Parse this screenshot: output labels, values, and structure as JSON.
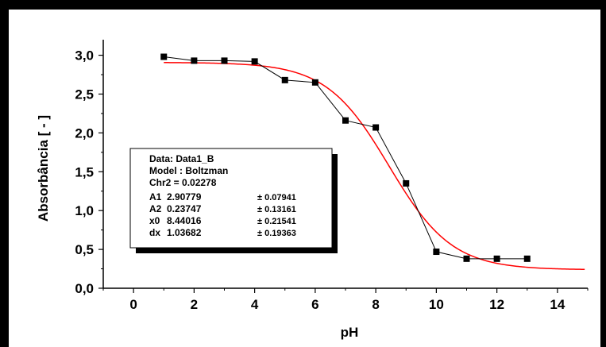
{
  "chart_data": {
    "type": "scatter",
    "xlabel": "pH",
    "ylabel": "Absorbância [ - ]",
    "xlim": [
      -1,
      15
    ],
    "ylim": [
      0,
      3.2
    ],
    "x_ticks": [
      0,
      2,
      4,
      6,
      8,
      10,
      12,
      14
    ],
    "x_tick_labels": [
      "0",
      "2",
      "4",
      "6",
      "8",
      "10",
      "12",
      "14"
    ],
    "y_ticks": [
      0,
      0.5,
      1.0,
      1.5,
      2.0,
      2.5,
      3.0
    ],
    "y_tick_labels": [
      "0,0",
      "0,5",
      "1,0",
      "1,5",
      "2,0",
      "2,5",
      "3,0"
    ],
    "grid": false,
    "series": [
      {
        "kind": "data",
        "marker": "square",
        "line_color": "#000000",
        "x": [
          1,
          2,
          3,
          4,
          5,
          6,
          7,
          8,
          9,
          10,
          11,
          12,
          13
        ],
        "y": [
          2.98,
          2.93,
          2.93,
          2.92,
          2.68,
          2.65,
          2.16,
          2.07,
          1.35,
          0.47,
          0.38,
          0.38,
          0.38
        ]
      },
      {
        "kind": "fit",
        "model": "Boltzman",
        "color": "#ff0000",
        "params": {
          "A1": 2.90779,
          "A2": 0.23747,
          "x0": 8.44016,
          "dx": 1.03682
        }
      }
    ],
    "fit_box": {
      "lines": [
        "Data: Data1_B",
        "Model : Boltzman",
        "Chr2 = 0.02278"
      ],
      "params": [
        {
          "name": "A1",
          "value": "2.90779",
          "error": "± 0.07941"
        },
        {
          "name": "A2",
          "value": "0.23747",
          "error": "± 0.13161"
        },
        {
          "name": "x0",
          "value": "8.44016",
          "error": "± 0.21541"
        },
        {
          "name": "dx",
          "value": "1.03682",
          "error": "± 0.19363"
        }
      ]
    }
  }
}
